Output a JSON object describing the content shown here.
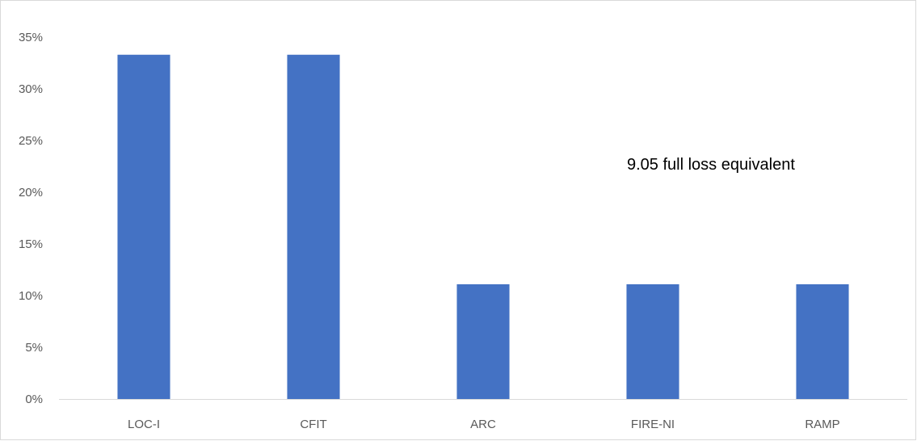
{
  "chart_data": {
    "type": "bar",
    "categories": [
      "LOC-I",
      "CFIT",
      "ARC",
      "FIRE-NI",
      "RAMP"
    ],
    "values": [
      33.3,
      33.3,
      11.1,
      11.1,
      11.1
    ],
    "ylim": [
      0,
      35
    ],
    "yticks": [
      0,
      5,
      10,
      15,
      20,
      25,
      30,
      35
    ],
    "ytick_labels": [
      "0%",
      "5%",
      "10%",
      "15%",
      "20%",
      "25%",
      "30%",
      "35%"
    ],
    "annotation": "9.05 full loss equivalent",
    "bar_color": "#4472c4",
    "axis_color": "#d9d9d9",
    "grid": false,
    "legend": "none"
  }
}
